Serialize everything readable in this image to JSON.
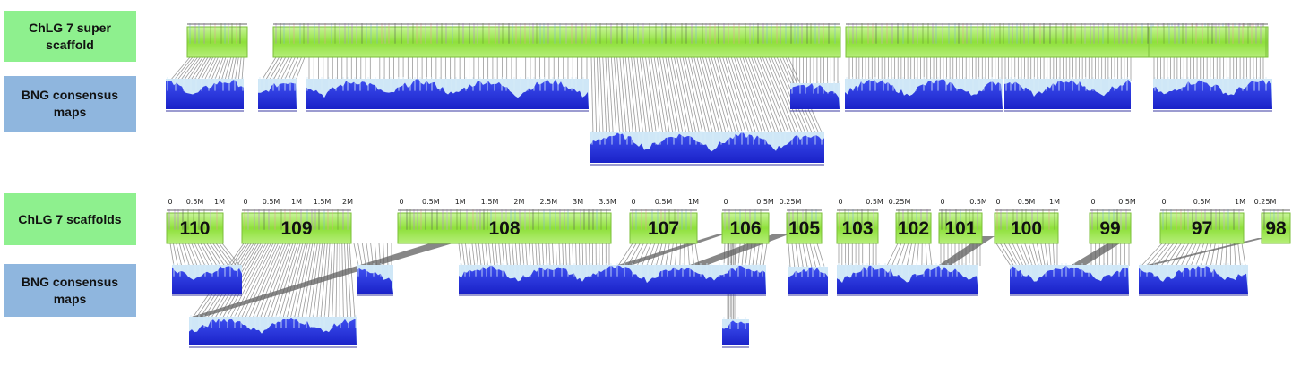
{
  "labels": {
    "super_scaffold": "ChLG 7 super scaffold",
    "bng_top": "BNG consensus maps",
    "scaffolds": "ChLG 7 scaffolds",
    "bng_bottom": "BNG consensus maps"
  },
  "scaffold_numbers": [
    "110",
    "109",
    "108",
    "107",
    "106",
    "105",
    "103",
    "102",
    "101",
    "100",
    "99",
    "97",
    "98"
  ],
  "scaffold_ticks": [
    [
      "0",
      "0.5M",
      "1M"
    ],
    [
      "0",
      "0.5M",
      "1M",
      "1.5M",
      "2M"
    ],
    [
      "0",
      "0.5M",
      "1M",
      "1.5M",
      "2M",
      "2.5M",
      "3M",
      "3.5M"
    ],
    [
      "0",
      "0.5M",
      "1M"
    ],
    [
      "0",
      "0.5M"
    ],
    [
      "0.25M"
    ],
    [
      "0",
      "0.5M"
    ],
    [
      "0.25M"
    ],
    [
      "0",
      "0.5M"
    ],
    [
      "0",
      "0.5M",
      "1M"
    ],
    [
      "0",
      "0.5M"
    ],
    [
      "0",
      "0.5M",
      "1M"
    ],
    [
      "0.25M"
    ]
  ],
  "colors": {
    "label_green": "#8ef08e",
    "label_blue": "#8fb6de",
    "scaffold_green": "#9be34a",
    "map_blue": "#2633d9",
    "alignment_gray": "#707070"
  }
}
